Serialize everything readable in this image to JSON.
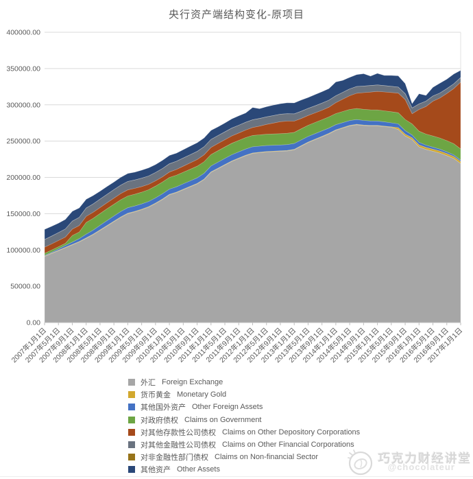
{
  "title": "央行资产端结构变化-原项目",
  "watermark": {
    "brand": "巧克力财经讲堂",
    "handle": "@chocolateur"
  },
  "chart_data": {
    "type": "area",
    "stacked": true,
    "title": "央行资产端结构变化-原项目",
    "grid": "horizontal",
    "legend_position": "bottom-left",
    "ylim": [
      0,
      400000
    ],
    "y_ticks": [
      "0.00",
      "50000.00",
      "100000.00",
      "150000.00",
      "200000.00",
      "250000.00",
      "300000.00",
      "350000.00",
      "400000.00"
    ],
    "x_labels": [
      "2007年1月1日",
      "2007年5月1日",
      "2007年9月1日",
      "2008年1月1日",
      "2008年5月1日",
      "2008年9月1日",
      "2009年1月1日",
      "2009年5月1日",
      "2009年9月1日",
      "2010年1月1日",
      "2010年5月1日",
      "2010年9月1日",
      "2011年1月1日",
      "2011年5月1日",
      "2011年9月1日",
      "2012年1月1日",
      "2012年5月1日",
      "2012年9月1日",
      "2013年1月1日",
      "2013年5月1日",
      "2013年9月1日",
      "2014年1月1日",
      "2014年5月1日",
      "2014年9月1日",
      "2015年1月1日",
      "2015年5月1日",
      "2015年9月1日",
      "2016年1月1日",
      "2016年5月1日",
      "2016年9月1日",
      "2017年1月1日"
    ],
    "points_per_label_interval": 2,
    "series": [
      {
        "name": "外汇",
        "name_en": "Foreign Exchange",
        "color": "#a6a6a6",
        "values": [
          91000,
          95000,
          99000,
          103000,
          107000,
          111000,
          116000,
          121000,
          127000,
          133000,
          139000,
          145000,
          150000,
          152500,
          155500,
          159000,
          164000,
          169500,
          176000,
          179000,
          183000,
          187000,
          191000,
          197000,
          207000,
          212000,
          217000,
          222000,
          226000,
          230000,
          233000,
          234000,
          235000,
          235500,
          236000,
          236500,
          238000,
          243000,
          248000,
          252000,
          256000,
          260000,
          265000,
          268000,
          271000,
          272500,
          271500,
          271000,
          271000,
          270000,
          269000,
          266000,
          257000,
          252000,
          242000,
          238500,
          236000,
          233500,
          230000,
          226000,
          219000
        ]
      },
      {
        "name": "货币黄金",
        "name_en": "Monetary Gold",
        "color": "#d2a82e",
        "values": [
          670,
          670,
          670,
          670,
          670,
          670,
          670,
          670,
          670,
          670,
          670,
          670,
          670,
          670,
          670,
          670,
          670,
          670,
          670,
          670,
          670,
          670,
          670,
          670,
          670,
          670,
          670,
          670,
          670,
          670,
          670,
          670,
          670,
          670,
          670,
          670,
          670,
          670,
          670,
          670,
          670,
          670,
          670,
          670,
          670,
          670,
          670,
          670,
          670,
          670,
          670,
          2600,
          2600,
          2600,
          2800,
          2800,
          2900,
          2900,
          2900,
          2900,
          2900
        ]
      },
      {
        "name": "其他国外资产",
        "name_en": "Other Foreign Assets",
        "color": "#4472c4",
        "values": [
          800,
          1200,
          1800,
          2500,
          3200,
          4000,
          5000,
          5600,
          6200,
          6800,
          7200,
          7400,
          7500,
          7400,
          7200,
          7100,
          7100,
          7200,
          7200,
          7300,
          7400,
          7500,
          7700,
          7900,
          8000,
          8200,
          8400,
          8500,
          8500,
          8400,
          8500,
          8400,
          8200,
          8100,
          8000,
          8000,
          8000,
          7900,
          7700,
          7600,
          7400,
          7200,
          7000,
          6800,
          6600,
          6500,
          6300,
          6100,
          6000,
          5800,
          5500,
          5200,
          4800,
          3800,
          3500,
          3100,
          2800,
          2600,
          2400,
          2200,
          2000
        ]
      },
      {
        "name": "对政府债权",
        "name_en": "Claims on Government",
        "color": "#6da544",
        "values": [
          2900,
          2900,
          2900,
          2900,
          9000,
          9000,
          16200,
          16200,
          16200,
          16200,
          16200,
          16200,
          16200,
          16200,
          16200,
          16200,
          16200,
          16200,
          16000,
          16000,
          16000,
          16000,
          16000,
          16000,
          15800,
          15800,
          15800,
          15800,
          15800,
          15800,
          15600,
          15600,
          15600,
          15600,
          15600,
          15600,
          15400,
          15400,
          15400,
          15400,
          15400,
          15400,
          15300,
          15300,
          15300,
          15300,
          15300,
          15300,
          15300,
          15300,
          15300,
          15300,
          15300,
          15300,
          15300,
          15300,
          15300,
          15300,
          15300,
          15300,
          15300
        ]
      },
      {
        "name": "对其他存款性公司债权",
        "name_en": "Claims on Other Depository Corporations",
        "color": "#a54a1b",
        "values": [
          8500,
          8500,
          8600,
          8700,
          8800,
          8900,
          8400,
          8400,
          8300,
          8300,
          8400,
          8500,
          8400,
          8100,
          7800,
          7500,
          7300,
          7200,
          7500,
          7900,
          8300,
          8800,
          9200,
          9500,
          9800,
          10000,
          10000,
          10100,
          10200,
          10400,
          11000,
          12000,
          13500,
          15000,
          16500,
          16800,
          15500,
          14200,
          13500,
          13200,
          13100,
          13500,
          15000,
          17000,
          19000,
          21000,
          23000,
          24500,
          25500,
          26000,
          26500,
          27000,
          27500,
          14000,
          30000,
          38000,
          48000,
          55000,
          65000,
          76000,
          92000
        ]
      },
      {
        "name": "对其他金融性公司债权",
        "name_en": "Claims on Other Financial Corporations",
        "color": "#6a7380",
        "values": [
          10500,
          10700,
          10900,
          11000,
          11100,
          11300,
          11500,
          11500,
          11600,
          11600,
          11600,
          11600,
          11600,
          11500,
          11500,
          11400,
          11400,
          11400,
          11400,
          11300,
          11300,
          11200,
          11200,
          11100,
          11000,
          10900,
          10800,
          10800,
          10700,
          10700,
          10600,
          10500,
          10400,
          10300,
          10300,
          10200,
          10000,
          9900,
          9800,
          9700,
          9700,
          9600,
          9500,
          9400,
          9300,
          9200,
          9100,
          9000,
          8900,
          8700,
          8500,
          8300,
          8100,
          7900,
          7600,
          7300,
          7100,
          6900,
          6700,
          6500,
          6300
        ]
      },
      {
        "name": "对非金融性部门债权",
        "name_en": "Claims on Non-financial Sector",
        "color": "#97741a",
        "values": [
          30,
          30,
          30,
          30,
          30,
          30,
          30,
          30,
          30,
          30,
          30,
          30,
          30,
          30,
          30,
          30,
          30,
          30,
          30,
          30,
          30,
          30,
          30,
          30,
          30,
          30,
          30,
          30,
          30,
          30,
          30,
          30,
          30,
          30,
          30,
          30,
          30,
          30,
          30,
          30,
          30,
          30,
          30,
          30,
          30,
          30,
          30,
          30,
          30,
          30,
          30,
          30,
          30,
          30,
          30,
          30,
          30,
          30,
          30,
          30,
          30
        ]
      },
      {
        "name": "其他资产",
        "name_en": "Other Assets",
        "color": "#2a4878",
        "values": [
          14000,
          13500,
          13000,
          13200,
          13500,
          13000,
          12000,
          11500,
          11000,
          10800,
          10500,
          10800,
          11000,
          10800,
          11000,
          11200,
          11000,
          11300,
          11500,
          11200,
          11500,
          11800,
          12000,
          12200,
          12500,
          12000,
          12300,
          12800,
          13000,
          12800,
          17000,
          13500,
          14000,
          14500,
          14500,
          15000,
          15000,
          15500,
          15000,
          15500,
          15800,
          16000,
          19000,
          16500,
          16000,
          16500,
          17000,
          13000,
          16000,
          14000,
          15000,
          15500,
          14000,
          6000,
          14000,
          8000,
          12000,
          13500,
          13000,
          13500,
          10000
        ]
      }
    ]
  }
}
